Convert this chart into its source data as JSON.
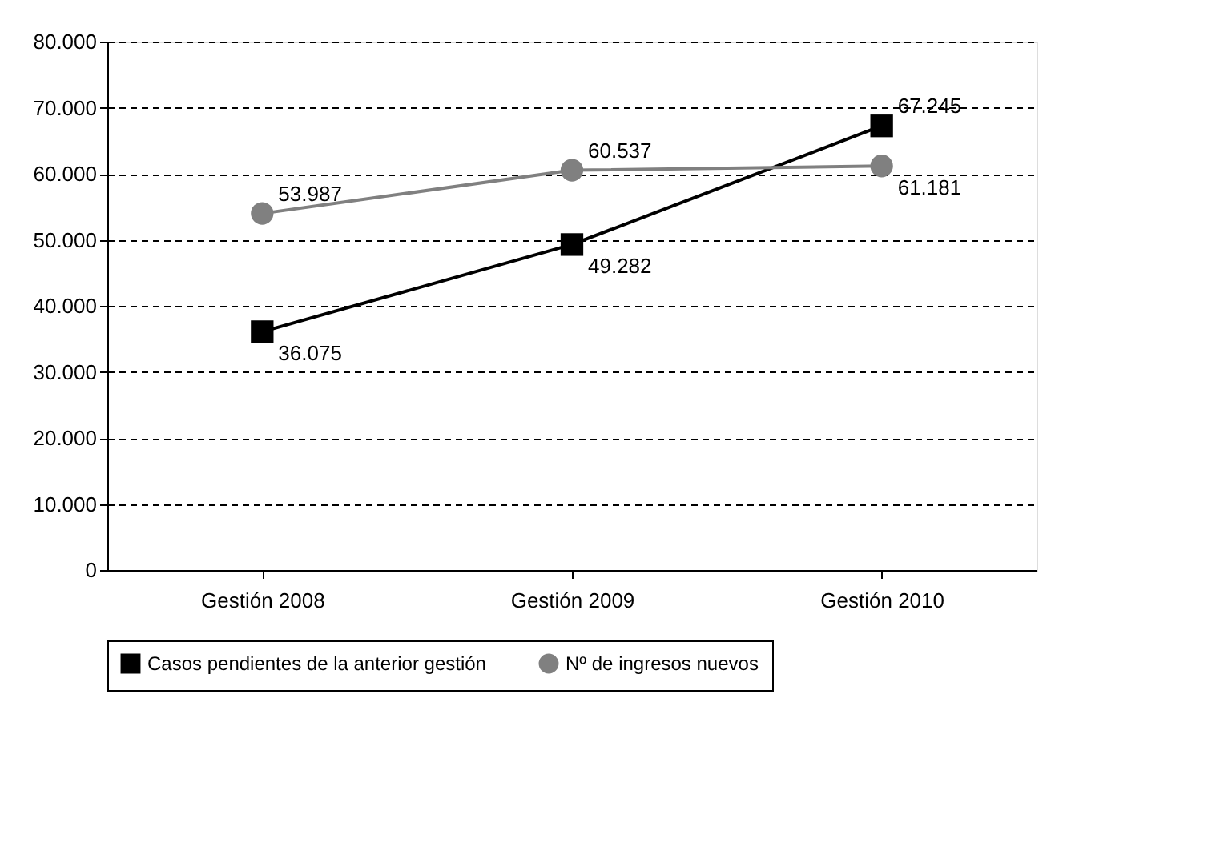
{
  "chart_data": {
    "type": "line",
    "categories": [
      "Gestión 2008",
      "Gestión 2009",
      "Gestión 2010"
    ],
    "series": [
      {
        "name": "Casos pendientes de la anterior gestión",
        "color": "#000000",
        "marker": "square",
        "values": [
          36075,
          49282,
          67245
        ],
        "value_labels": [
          "36.075",
          "49.282",
          "67.245"
        ]
      },
      {
        "name": "Nº de ingresos nuevos",
        "color": "#808080",
        "marker": "circle",
        "values": [
          53987,
          60537,
          61181
        ],
        "value_labels": [
          "53.987",
          "60.537",
          "61.181"
        ]
      }
    ],
    "ylim": [
      0,
      80000
    ],
    "yticks": [
      {
        "value": 0,
        "label": "0"
      },
      {
        "value": 10000,
        "label": "10.000"
      },
      {
        "value": 20000,
        "label": "20.000"
      },
      {
        "value": 30000,
        "label": "30.000"
      },
      {
        "value": 40000,
        "label": "40.000"
      },
      {
        "value": 50000,
        "label": "50.000"
      },
      {
        "value": 60000,
        "label": "60.000"
      },
      {
        "value": 70000,
        "label": "70.000"
      },
      {
        "value": 80000,
        "label": "80.000"
      }
    ],
    "grid": "y",
    "legend": "bottom",
    "line_style": "solid"
  }
}
